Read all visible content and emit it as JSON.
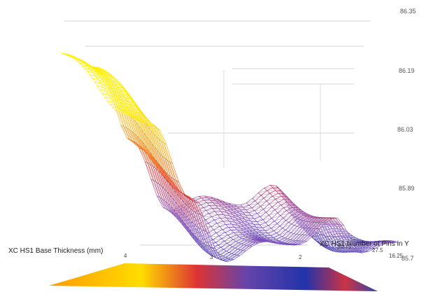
{
  "chart_data": {
    "type": "surface",
    "title": "",
    "xlabel": "XC HS1 Base Thickness (mm)",
    "ylabel": "XC HS1 Number of Pins in Y",
    "zlabel": "",
    "x_ticks": [
      "4",
      "3",
      "2"
    ],
    "y_ticks": [
      "30.75",
      "27.5",
      "16.25"
    ],
    "z_ticks": [
      "86.35",
      "86.19",
      "86.03",
      "85.89",
      "85.7"
    ],
    "x_range": [
      4.2,
      1.1
    ],
    "y_range": [
      16.25,
      30.75
    ],
    "z_range": [
      85.7,
      86.35
    ],
    "grid": true,
    "colormap": [
      "#2233aa",
      "#8855bb",
      "#dd3333",
      "#ff9900",
      "#ffee00"
    ],
    "surface_profile": {
      "x": [
        4.2,
        3.8,
        3.4,
        3.0,
        2.6,
        2.2,
        1.8,
        1.5,
        1.2
      ],
      "z": [
        86.22,
        86.18,
        85.98,
        85.8,
        85.84,
        85.82,
        85.88,
        85.78,
        85.8
      ]
    }
  }
}
